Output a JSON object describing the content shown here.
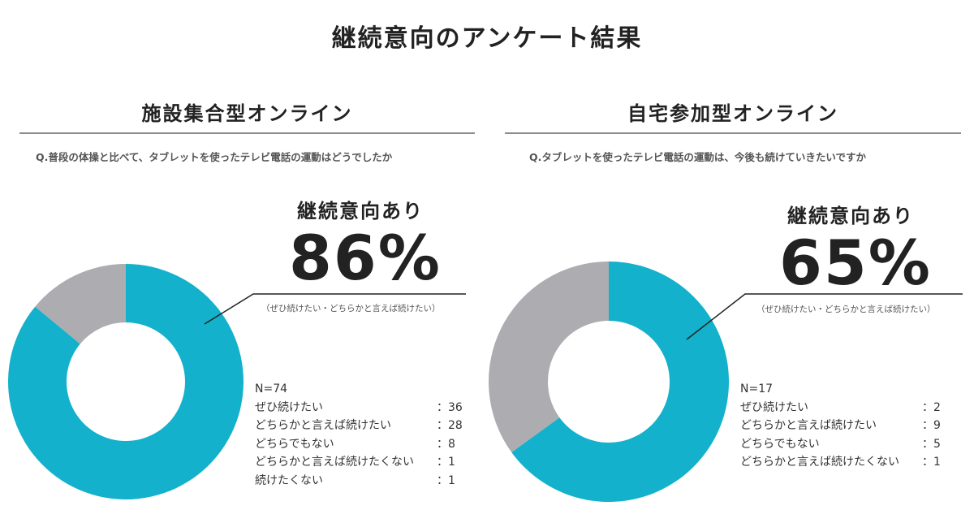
{
  "title": "継続意向のアンケート結果",
  "colors": {
    "positive": "#13b1cc",
    "negative": "#adadb1",
    "text": "#333333",
    "rule": "#8c8c8c"
  },
  "chart_data": [
    {
      "type": "pie",
      "title": "施設集合型オンライン",
      "question": "Q.普段の体操と比べて、タブレットを使ったテレビ電話の運動はどうでしたか",
      "highlight_label": "継続意向あり",
      "highlight_value": "86%",
      "highlight_note": "（ぜひ続けたい・どちらかと言えば続けたい）",
      "n_label": "N=74",
      "categories": [
        "ぜひ続けたい",
        "どちらかと言えば続けたい",
        "どちらでもない",
        "どちらかと言えば続けたくない",
        "続けたくない"
      ],
      "value_labels": [
        "：36",
        "：28",
        "：8",
        "：1",
        "：1"
      ],
      "values": [
        36,
        28,
        8,
        1,
        1
      ],
      "slices": [
        {
          "label": "継続意向あり",
          "value": 86
        },
        {
          "label": "",
          "value": 14
        }
      ]
    },
    {
      "type": "pie",
      "title": "自宅参加型オンライン",
      "question": "Q.タブレットを使ったテレビ電話の運動は、今後も続けていきたいですか",
      "highlight_label": "継続意向あり",
      "highlight_value": "65%",
      "highlight_note": "（ぜひ続けたい・どちらかと言えば続けたい）",
      "n_label": "N=17",
      "categories": [
        "ぜひ続けたい",
        "どちらかと言えば続けたい",
        "どちらでもない",
        "どちらかと言えば続けたくない"
      ],
      "value_labels": [
        "：2",
        "：9",
        "：5",
        "：1"
      ],
      "values": [
        2,
        9,
        5,
        1
      ],
      "slices": [
        {
          "label": "継続意向あり",
          "value": 65
        },
        {
          "label": "",
          "value": 35
        }
      ]
    }
  ]
}
